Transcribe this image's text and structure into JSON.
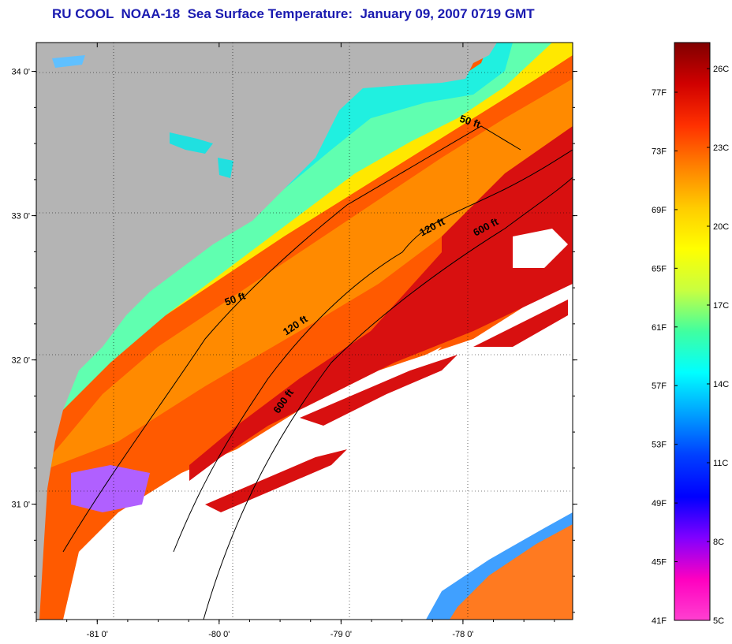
{
  "title": "RU COOL  NOAA-18  Sea Surface Temperature:  January 09, 2007 0719 GMT",
  "map": {
    "lon_range": [
      -81.5,
      -77.1
    ],
    "lat_range": [
      30.2,
      34.2
    ],
    "x_ticks": [
      {
        "lon": -81,
        "label": "-81 0'"
      },
      {
        "lon": -80,
        "label": "-80 0'"
      },
      {
        "lon": -79,
        "label": "-79 0'"
      },
      {
        "lon": -78,
        "label": "-78 0'"
      }
    ],
    "y_ticks": [
      {
        "lat": 34,
        "label": "34 0'"
      },
      {
        "lat": 33,
        "label": "33 0'"
      },
      {
        "lat": 32,
        "label": "32 0'"
      },
      {
        "lat": 31,
        "label": "31 0'"
      }
    ],
    "contour_labels": [
      {
        "text": "50 ft",
        "lon": -77.95,
        "lat": 33.63,
        "angle": 18
      },
      {
        "text": "50 ft",
        "lon": -79.86,
        "lat": 32.4,
        "angle": -20
      },
      {
        "text": "120 ft",
        "lon": -78.24,
        "lat": 32.9,
        "angle": -28
      },
      {
        "text": "120 ft",
        "lon": -79.36,
        "lat": 32.22,
        "angle": -34
      },
      {
        "text": "600 ft",
        "lon": -77.8,
        "lat": 32.9,
        "angle": -28
      },
      {
        "text": "600 ft",
        "lon": -79.45,
        "lat": 31.7,
        "angle": -55
      }
    ],
    "colors": {
      "land": "#b4b4b4",
      "cloud": "#ffffff",
      "contour": "#000000"
    }
  },
  "colorbar": {
    "fahrenheit_labels": [
      "77F",
      "73F",
      "69F",
      "65F",
      "61F",
      "57F",
      "53F",
      "49F",
      "45F",
      "41F"
    ],
    "celsius_labels": [
      "26C",
      "23C",
      "20C",
      "17C",
      "14C",
      "11C",
      "8C",
      "5C"
    ],
    "gradient": [
      "#800000",
      "#d00000",
      "#ff3000",
      "#ff8000",
      "#ffcc00",
      "#ffff00",
      "#c8ff40",
      "#40ffa0",
      "#00ffff",
      "#00a0ff",
      "#0040ff",
      "#0000ff",
      "#8000ff",
      "#ff00c0",
      "#ff40d0"
    ]
  }
}
